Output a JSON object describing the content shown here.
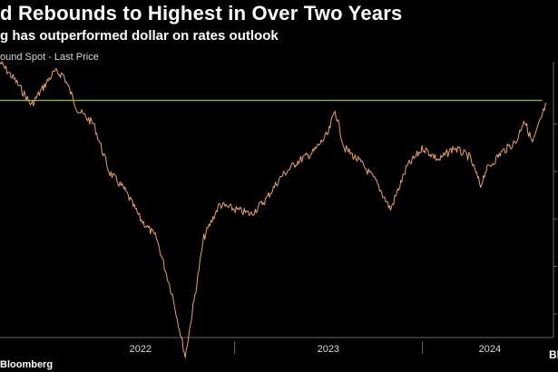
{
  "header": {
    "title": "d Rebounds to Highest in Over Two Years",
    "subtitle": "g has outperformed dollar on rates outlook",
    "legend_label": "ound Spot - Last Price"
  },
  "footer": {
    "source": "Bloomberg",
    "logo_text": "Bloom"
  },
  "colors": {
    "background": "#000000",
    "series": "#e8a06a",
    "reference_line": "#8fbf4f",
    "axis": "#666666",
    "text": "#ffffff"
  },
  "chart_data": {
    "type": "line",
    "title": "d Rebounds to Highest in Over Two Years",
    "subtitle": "g has outperformed dollar on rates outlook",
    "xlabel": "",
    "ylabel": "",
    "x_ticks": [
      "2022",
      "2023",
      "2024"
    ],
    "xlim": [
      "2021-10-01",
      "2024-08-31"
    ],
    "ylim": [
      1.075,
      1.36
    ],
    "grid": false,
    "legend": "top-left",
    "reference_line": {
      "y": 1.325
    },
    "series": [
      {
        "name": "ound Spot - Last Price",
        "x": [
          "2021-10-01",
          "2021-11-01",
          "2021-12-01",
          "2022-01-01",
          "2022-01-15",
          "2022-02-01",
          "2022-03-01",
          "2022-04-01",
          "2022-05-01",
          "2022-06-01",
          "2022-07-01",
          "2022-08-01",
          "2022-09-01",
          "2022-09-26",
          "2022-10-15",
          "2022-11-01",
          "2022-12-01",
          "2023-01-01",
          "2023-02-01",
          "2023-03-01",
          "2023-04-01",
          "2023-05-01",
          "2023-06-01",
          "2023-07-01",
          "2023-07-14",
          "2023-08-01",
          "2023-09-01",
          "2023-10-01",
          "2023-10-30",
          "2023-12-01",
          "2024-01-01",
          "2024-02-01",
          "2024-03-01",
          "2024-04-01",
          "2024-04-22",
          "2024-05-01",
          "2024-06-01",
          "2024-07-01",
          "2024-07-15",
          "2024-08-01",
          "2024-08-28"
        ],
        "y": [
          1.365,
          1.345,
          1.32,
          1.345,
          1.355,
          1.352,
          1.315,
          1.3,
          1.25,
          1.23,
          1.2,
          1.18,
          1.12,
          1.055,
          1.12,
          1.18,
          1.215,
          1.21,
          1.205,
          1.22,
          1.245,
          1.26,
          1.27,
          1.29,
          1.315,
          1.275,
          1.26,
          1.24,
          1.21,
          1.255,
          1.275,
          1.262,
          1.275,
          1.265,
          1.235,
          1.25,
          1.27,
          1.282,
          1.305,
          1.28,
          1.322
        ]
      }
    ]
  }
}
